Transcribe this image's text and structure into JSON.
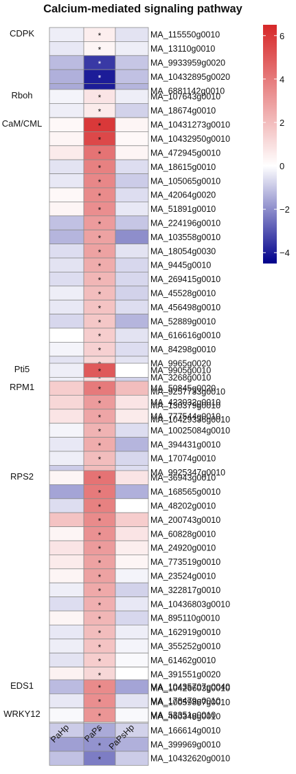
{
  "chart_data": {
    "type": "heatmap",
    "title": "Calcium-mediated signaling pathway",
    "columns": [
      "PaHp",
      "PaPs",
      "PaPsHp"
    ],
    "colorbar": {
      "min": -4.5,
      "max": 6.5,
      "ticks": [
        6,
        4,
        2,
        0,
        -2,
        -4
      ],
      "tick_labels": [
        "6",
        "4",
        "2",
        "0",
        "−2",
        "−4"
      ],
      "low_color": "#00008b",
      "mid_color": "#ffffff",
      "high_color": "#d62728"
    },
    "marker": "*",
    "groups": [
      {
        "name": "CDPK",
        "rows": [
          {
            "gene": "MA_115550g0010",
            "values": [
              -0.3,
              0.5,
              -0.5
            ]
          },
          {
            "gene": "MA_13110g0010",
            "values": [
              -0.4,
              0.3,
              -0.3
            ]
          },
          {
            "gene": "MA_9933959g0020",
            "values": [
              -1.2,
              -3.5,
              -1.0
            ]
          },
          {
            "gene": "MA_10432895g0020",
            "values": [
              -1.4,
              -4.0,
              -1.1
            ]
          },
          {
            "gene": "MA_6881142g0010",
            "values": [
              -1.5,
              -4.0,
              -1.3
            ]
          }
        ]
      },
      {
        "name": "Rboh",
        "rows": [
          {
            "gene": "MA_107643g0010",
            "values": [
              -0.2,
              0.8,
              -0.3
            ]
          },
          {
            "gene": "MA_18674g0010",
            "values": [
              -0.3,
              0.6,
              -0.8
            ]
          }
        ]
      },
      {
        "name": "CaM/CML",
        "rows": [
          {
            "gene": "MA_10431273g0010",
            "values": [
              0.2,
              6.0,
              0.3
            ]
          },
          {
            "gene": "MA_10432950g0010",
            "values": [
              0.3,
              5.5,
              0.2
            ]
          },
          {
            "gene": "MA_472945g0010",
            "values": [
              0.6,
              4.2,
              0.3
            ]
          },
          {
            "gene": "MA_18615g0010",
            "values": [
              -0.5,
              3.8,
              -0.6
            ]
          },
          {
            "gene": "MA_105065g0010",
            "values": [
              -0.4,
              3.6,
              -0.9
            ]
          },
          {
            "gene": "MA_42064g0020",
            "values": [
              0.2,
              3.5,
              -0.6
            ]
          },
          {
            "gene": "MA_51891g0010",
            "values": [
              0.3,
              3.4,
              -0.4
            ]
          },
          {
            "gene": "MA_224196g0010",
            "values": [
              -1.1,
              3.0,
              -1.0
            ]
          },
          {
            "gene": "MA_103558g0010",
            "values": [
              -1.3,
              2.8,
              -2.0
            ]
          },
          {
            "gene": "MA_18054g0030",
            "values": [
              -0.6,
              2.8,
              -0.5
            ]
          },
          {
            "gene": "MA_9445g0010",
            "values": [
              -0.5,
              2.5,
              -0.7
            ]
          },
          {
            "gene": "MA_269415g0010",
            "values": [
              -0.6,
              2.2,
              -0.7
            ]
          },
          {
            "gene": "MA_45528g0010",
            "values": [
              -0.3,
              2.0,
              -0.8
            ]
          },
          {
            "gene": "MA_456498g0010",
            "values": [
              -0.4,
              1.8,
              -0.6
            ]
          },
          {
            "gene": "MA_52889g0010",
            "values": [
              -0.7,
              1.7,
              -1.3
            ]
          },
          {
            "gene": "MA_616616g0010",
            "values": [
              0.0,
              1.5,
              -0.5
            ]
          },
          {
            "gene": "MA_84298g0010",
            "values": [
              -0.2,
              1.4,
              -0.6
            ]
          },
          {
            "gene": "MA_9965g0020",
            "values": [
              -0.5,
              1.2,
              -0.5
            ]
          },
          {
            "gene": "MA_3268g0010",
            "values": [
              -0.3,
              1.0,
              -0.8
            ]
          },
          {
            "gene": "MA_9257733g0010",
            "values": [
              -0.4,
              0.9,
              -0.5
            ]
          },
          {
            "gene": "MA_130379g0010",
            "values": [
              -0.5,
              0.7,
              -0.5
            ]
          },
          {
            "gene": "MA_10429336g0010",
            "values": [
              -0.3,
              0.5,
              -0.4
            ]
          }
        ]
      },
      {
        "name": "Pti5",
        "rows": [
          {
            "gene": "MA_9905g0010",
            "values": [
              -0.3,
              5.0,
              0.0
            ]
          }
        ]
      },
      {
        "name": "RPM1",
        "rows": [
          {
            "gene": "MA_50845g0020",
            "values": [
              1.5,
              4.0,
              2.0
            ]
          },
          {
            "gene": "MA_423032g0010",
            "values": [
              1.2,
              3.0,
              0.8
            ]
          },
          {
            "gene": "MA_777544g0010",
            "values": [
              0.8,
              2.7,
              0.6
            ]
          },
          {
            "gene": "MA_10025084g0010",
            "values": [
              -0.2,
              2.3,
              -0.6
            ]
          },
          {
            "gene": "MA_394431g0010",
            "values": [
              -0.4,
              2.5,
              -1.3
            ]
          },
          {
            "gene": "MA_17074g0010",
            "values": [
              -0.3,
              2.0,
              -0.7
            ]
          },
          {
            "gene": "MA_9925347g0010",
            "values": [
              -0.9,
              2.0,
              -0.6
            ]
          }
        ]
      },
      {
        "name": "RPS2",
        "rows": [
          {
            "gene": "MA_36943g0010",
            "values": [
              0.3,
              4.2,
              0.8
            ]
          },
          {
            "gene": "MA_168565g0010",
            "values": [
              -1.6,
              4.0,
              -1.4
            ]
          },
          {
            "gene": "MA_48202g0010",
            "values": [
              -0.6,
              3.8,
              0.0
            ]
          },
          {
            "gene": "MA_200743g0010",
            "values": [
              1.8,
              3.5,
              1.5
            ]
          },
          {
            "gene": "MA_60828g0010",
            "values": [
              0.3,
              3.3,
              0.8
            ]
          },
          {
            "gene": "MA_24920g0010",
            "values": [
              0.8,
              3.0,
              0.5
            ]
          },
          {
            "gene": "MA_773519g0010",
            "values": [
              0.6,
              2.8,
              0.3
            ]
          },
          {
            "gene": "MA_23524g0010",
            "values": [
              0.3,
              2.8,
              -0.2
            ]
          },
          {
            "gene": "MA_322817g0010",
            "values": [
              -0.3,
              2.6,
              -0.8
            ]
          },
          {
            "gene": "MA_10436803g0010",
            "values": [
              -0.6,
              2.4,
              -0.4
            ]
          },
          {
            "gene": "MA_895110g0010",
            "values": [
              0.3,
              2.2,
              -0.7
            ]
          },
          {
            "gene": "MA_162919g0010",
            "values": [
              -0.4,
              2.0,
              -0.3
            ]
          },
          {
            "gene": "MA_355252g0010",
            "values": [
              -0.3,
              1.8,
              -0.2
            ]
          },
          {
            "gene": "MA_61462g0010",
            "values": [
              -0.5,
              1.5,
              -0.1
            ]
          },
          {
            "gene": "MA_391551g0020",
            "values": [
              0.4,
              1.2,
              0.0
            ]
          },
          {
            "gene": "MA_10426603g0010",
            "values": [
              -0.2,
              0.9,
              -0.3
            ]
          },
          {
            "gene": "MA_10059887g0010",
            "values": [
              -0.2,
              0.5,
              -0.2
            ]
          },
          {
            "gene": "MA_460348g0010",
            "values": [
              0.0,
              0.3,
              0.0
            ]
          },
          {
            "gene": "MA_166614g0010",
            "values": [
              -0.9,
              -1.5,
              -0.8
            ]
          },
          {
            "gene": "MA_399969g0010",
            "values": [
              -1.7,
              -1.9,
              -1.4
            ]
          },
          {
            "gene": "MA_10432620g0010",
            "values": [
              -1.1,
              -2.3,
              -0.9
            ]
          }
        ]
      },
      {
        "name": "EDS1",
        "rows": [
          {
            "gene": "MA_10435707g0040",
            "values": [
              -1.2,
              3.5,
              -1.6
            ]
          },
          {
            "gene": "MA_178479g0010",
            "values": [
              -0.4,
              3.4,
              -0.5
            ]
          }
        ]
      },
      {
        "name": "WRKY12",
        "rows": [
          {
            "gene": "MA_53351g0010",
            "values": [
              -0.1,
              3.2,
              -0.1
            ]
          }
        ]
      }
    ]
  }
}
